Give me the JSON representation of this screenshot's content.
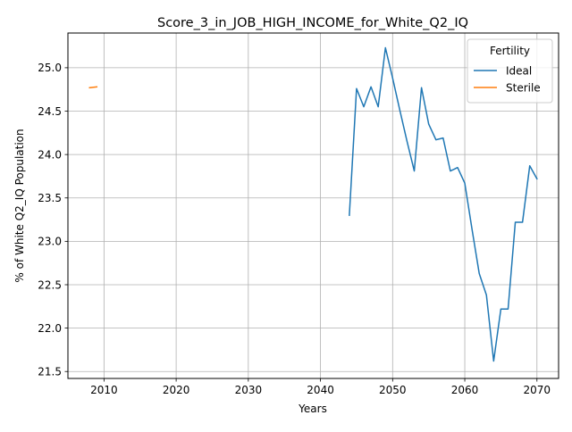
{
  "chart_data": {
    "type": "line",
    "title": "Score_3_in_JOB_HIGH_INCOME_for_White_Q2_IQ",
    "xlabel": "Years",
    "ylabel": "% of White Q2_IQ Population",
    "xlim": [
      2005,
      2073
    ],
    "ylim": [
      21.42,
      25.4
    ],
    "x_ticks": [
      2010,
      2020,
      2030,
      2040,
      2050,
      2060,
      2070
    ],
    "y_ticks": [
      21.5,
      22.0,
      22.5,
      23.0,
      23.5,
      24.0,
      24.5,
      25.0
    ],
    "x_tick_labels": [
      "2010",
      "2020",
      "2030",
      "2040",
      "2050",
      "2060",
      "2070"
    ],
    "y_tick_labels": [
      "21.5",
      "22.0",
      "22.5",
      "23.0",
      "23.5",
      "24.0",
      "24.5",
      "25.0"
    ],
    "grid": true,
    "legend": {
      "title": "Fertility",
      "placement": "top-right"
    },
    "series": [
      {
        "name": "Ideal",
        "color": "#1f77b4",
        "x": [
          2044,
          2045,
          2046,
          2047,
          2048,
          2049,
          2050,
          2051,
          2052,
          2053,
          2054,
          2055,
          2056,
          2057,
          2058,
          2059,
          2060,
          2061,
          2062,
          2063,
          2064,
          2065,
          2066,
          2067,
          2068,
          2069,
          2070
        ],
        "y": [
          23.3,
          24.76,
          24.55,
          24.78,
          24.55,
          25.23,
          24.88,
          24.51,
          24.15,
          23.81,
          24.77,
          24.35,
          24.17,
          24.19,
          23.81,
          23.85,
          23.67,
          23.14,
          22.63,
          22.38,
          21.62,
          22.22,
          22.22,
          23.22,
          23.22,
          23.87,
          23.72
        ]
      },
      {
        "name": "Sterile",
        "color": "#ff7f0e",
        "x": [
          2008,
          2009
        ],
        "y": [
          24.77,
          24.78
        ]
      }
    ]
  }
}
